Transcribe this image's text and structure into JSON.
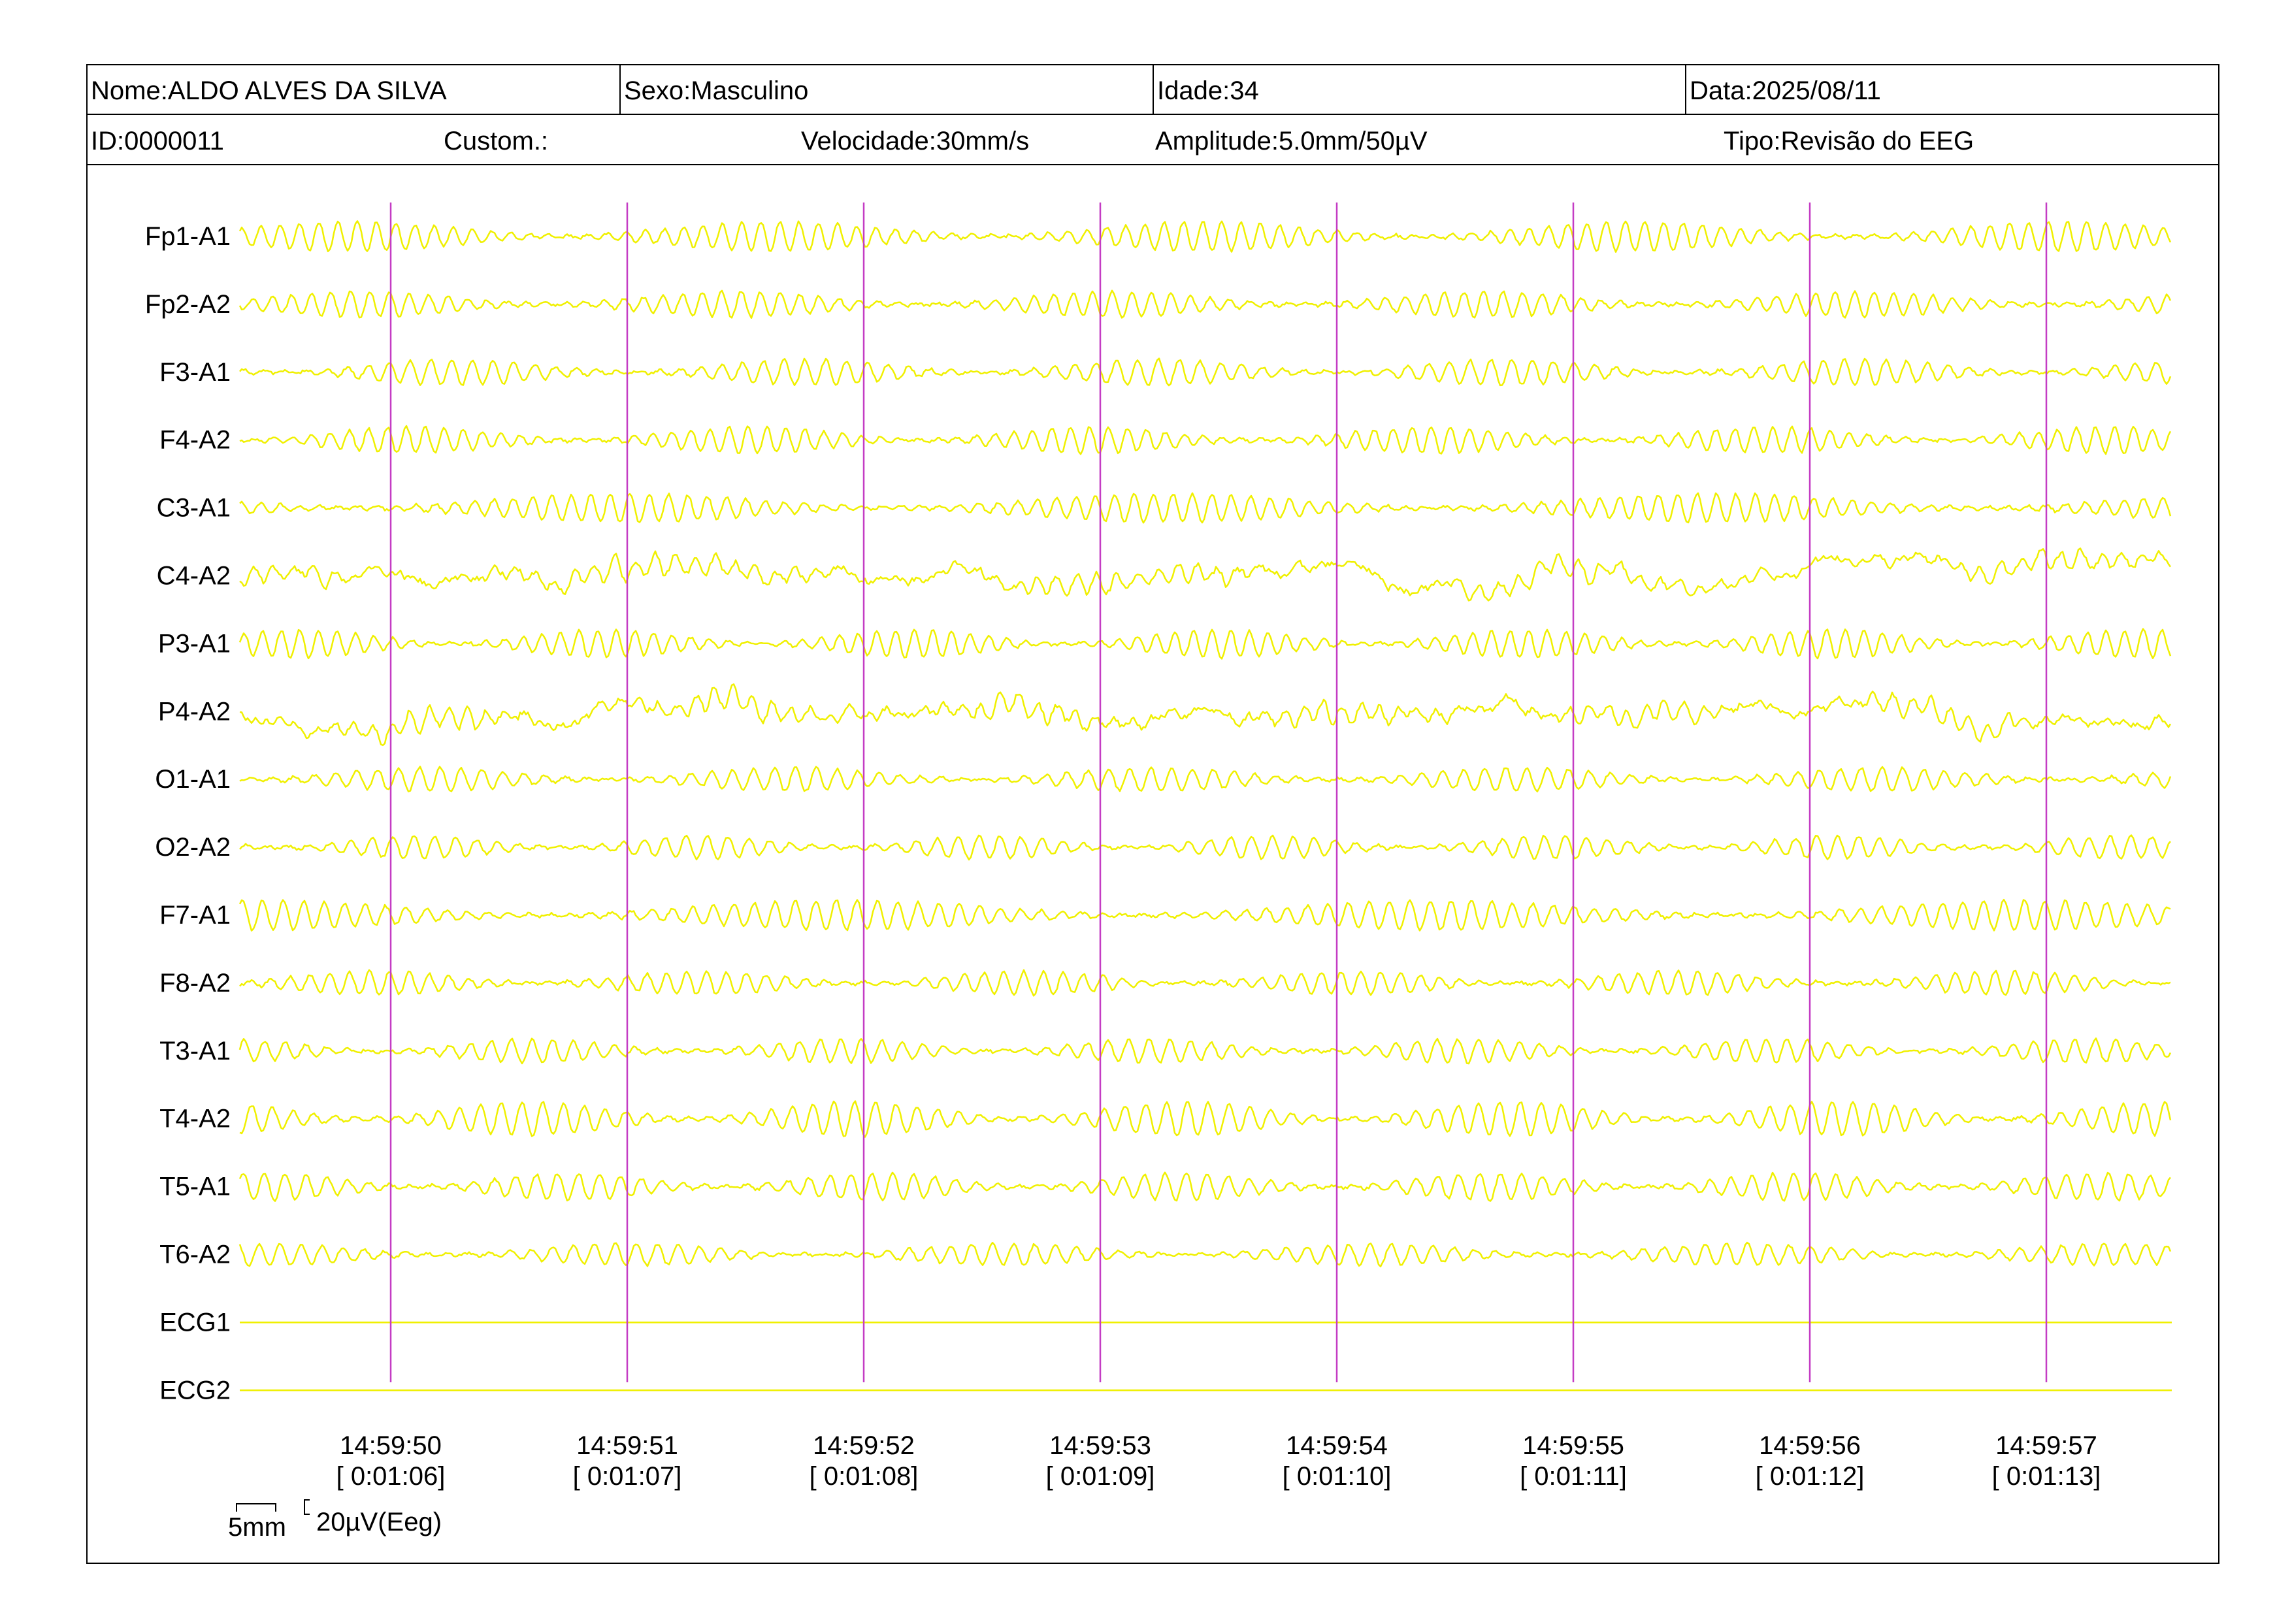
{
  "header": {
    "row1": [
      "Nome:ALDO ALVES DA SILVA",
      "Sexo:Masculino",
      "Idade:34",
      "Data:2025/08/11"
    ],
    "row2": [
      "ID:0000011",
      "Custom.:",
      "Velocidade:30mm/s",
      "Amplitude:5.0mm/50µV",
      "Tipo:Revisão do EEG"
    ]
  },
  "channels": [
    "Fp1-A1",
    "Fp2-A2",
    "F3-A1",
    "F4-A2",
    "C3-A1",
    "C4-A2",
    "P3-A1",
    "P4-A2",
    "O1-A1",
    "O2-A2",
    "F7-A1",
    "F8-A2",
    "T3-A1",
    "T4-A2",
    "T5-A1",
    "T6-A2",
    "ECG1",
    "ECG2"
  ],
  "time_marks": [
    {
      "clock": "14:59:50",
      "elapsed": "[ 0:01:06]"
    },
    {
      "clock": "14:59:51",
      "elapsed": "[ 0:01:07]"
    },
    {
      "clock": "14:59:52",
      "elapsed": "[ 0:01:08]"
    },
    {
      "clock": "14:59:53",
      "elapsed": "[ 0:01:09]"
    },
    {
      "clock": "14:59:54",
      "elapsed": "[ 0:01:10]"
    },
    {
      "clock": "14:59:55",
      "elapsed": "[ 0:01:11]"
    },
    {
      "clock": "14:59:56",
      "elapsed": "[ 0:01:12]"
    },
    {
      "clock": "14:59:57",
      "elapsed": "[ 0:01:13]"
    }
  ],
  "scale": {
    "time": "5mm",
    "amplitude": "20µV(Eeg)"
  }
}
